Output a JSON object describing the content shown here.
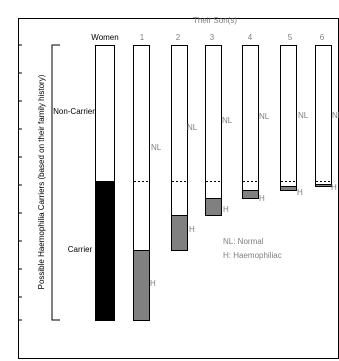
{
  "diagram": {
    "title_top": "Their Son(s)",
    "women_label": "Women",
    "y_axis_label": "Possible Haemophilia Carriers (based on their family history)",
    "non_carrier_label": "Non-Carrier",
    "carrier_label": "Carrier",
    "column_labels": [
      "1",
      "2",
      "3",
      "4",
      "5",
      "6"
    ],
    "nl_label": "NL",
    "h_label": "H",
    "legend": {
      "nl": "NL: Normal",
      "h": "H: Haemophiliac"
    },
    "colors": {
      "frame": "#000000",
      "carrier_fill": "#000000",
      "haemophiliac_fill": "#808080",
      "label_gray": "#808080"
    }
  }
}
